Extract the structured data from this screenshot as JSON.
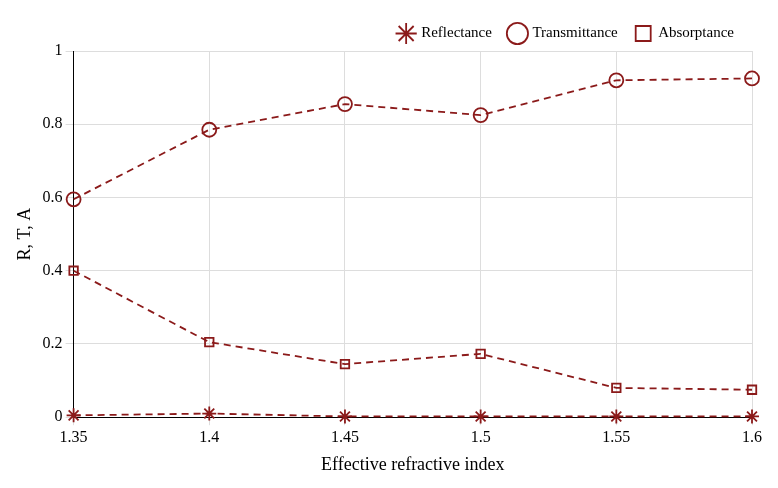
{
  "chart_data": {
    "type": "line",
    "x_label": "Effective refractive index",
    "y_label": "R, T, A",
    "x": [
      1.35,
      1.4,
      1.45,
      1.5,
      1.55,
      1.6
    ],
    "series": [
      {
        "name": "Reflectance",
        "color": "#8b1a1a",
        "marker": "star",
        "line_style": "dashed",
        "values": [
          0.005,
          0.01,
          0.002,
          0.002,
          0.002,
          0.002
        ]
      },
      {
        "name": "Transmittance",
        "color": "#8b1a1a",
        "marker": "circle",
        "line_style": "dashed",
        "values": [
          0.595,
          0.785,
          0.855,
          0.825,
          0.92,
          0.925
        ]
      },
      {
        "name": "Absorptance",
        "color": "#8b1a1a",
        "marker": "square",
        "line_style": "dashed",
        "values": [
          0.4,
          0.205,
          0.145,
          0.173,
          0.08,
          0.075
        ]
      }
    ],
    "xlim": [
      1.35,
      1.6
    ],
    "xticks": [
      1.35,
      1.4,
      1.45,
      1.5,
      1.55,
      1.6
    ],
    "ylim": [
      0,
      1
    ],
    "yticks": [
      0,
      0.2,
      0.4,
      0.6,
      0.8,
      1
    ],
    "grid": true,
    "legend": "top"
  }
}
